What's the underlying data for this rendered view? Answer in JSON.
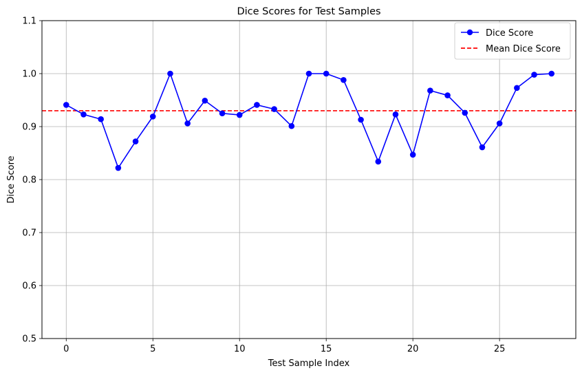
{
  "chart_data": {
    "type": "line",
    "title": "Dice Scores for Test Samples",
    "xlabel": "Test Sample Index",
    "ylabel": "Dice Score",
    "xlim": [
      -1.4,
      29.4
    ],
    "ylim": [
      0.5,
      1.1
    ],
    "x_ticks": [
      0,
      5,
      10,
      15,
      20,
      25
    ],
    "y_ticks": [
      0.5,
      0.6,
      0.7,
      0.8,
      0.9,
      1.0,
      1.1
    ],
    "y_tick_labels": [
      "0.5",
      "0.6",
      "0.7",
      "0.8",
      "0.9",
      "1.0",
      "1.1"
    ],
    "grid": true,
    "legend_position": "top-right",
    "series": [
      {
        "name": "Dice Score",
        "color": "#0000ff",
        "marker": "circle",
        "x": [
          0,
          1,
          2,
          3,
          4,
          5,
          6,
          7,
          8,
          9,
          10,
          11,
          12,
          13,
          14,
          15,
          16,
          17,
          18,
          19,
          20,
          21,
          22,
          23,
          24,
          25,
          26,
          27,
          28
        ],
        "values": [
          0.941,
          0.923,
          0.914,
          0.822,
          0.872,
          0.919,
          1.0,
          0.906,
          0.949,
          0.925,
          0.922,
          0.941,
          0.933,
          0.901,
          1.0,
          1.0,
          0.988,
          0.913,
          0.834,
          0.923,
          0.847,
          0.968,
          0.959,
          0.926,
          0.861,
          0.906,
          0.973,
          0.998,
          1.0
        ]
      }
    ],
    "reference_lines": [
      {
        "name": "Mean Dice Score",
        "y": 0.93,
        "color": "#ff0000",
        "style": "dashed"
      }
    ]
  }
}
